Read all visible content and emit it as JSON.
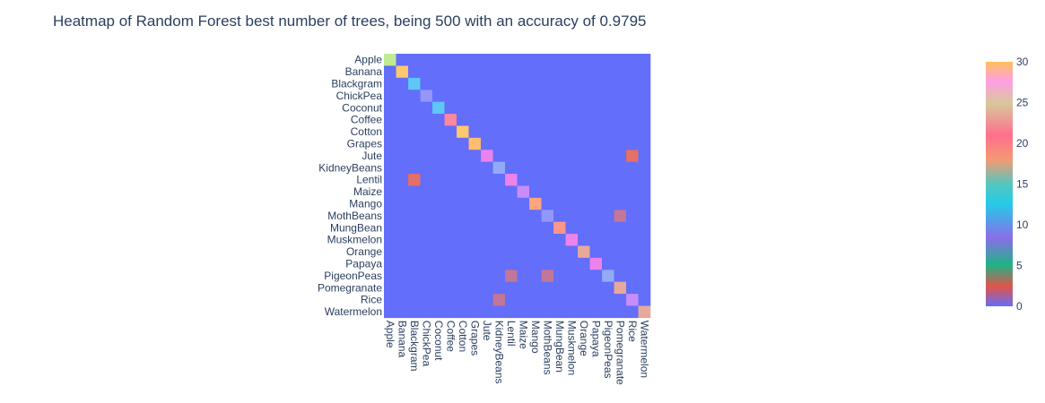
{
  "chart_data": {
    "type": "heatmap",
    "title": "Heatmap of Random Forest best number of trees, being 500 with an accuracy of 0.9795",
    "xlabel": "",
    "ylabel": "",
    "x_categories": [
      "Apple",
      "Banana",
      "Blackgram",
      "ChickPea",
      "Coconut",
      "Coffee",
      "Cotton",
      "Grapes",
      "Jute",
      "KidneyBeans",
      "Lentil",
      "Maize",
      "Mango",
      "MothBeans",
      "MungBean",
      "Muskmelon",
      "Orange",
      "Papaya",
      "PigeonPeas",
      "Pomegranate",
      "Rice",
      "Watermelon"
    ],
    "y_categories": [
      "Apple",
      "Banana",
      "Blackgram",
      "ChickPea",
      "Coconut",
      "Coffee",
      "Cotton",
      "Grapes",
      "Jute",
      "KidneyBeans",
      "Lentil",
      "Maize",
      "Mango",
      "MothBeans",
      "MungBean",
      "Muskmelon",
      "Orange",
      "Papaya",
      "PigeonPeas",
      "Pomegranate",
      "Rice",
      "Watermelon"
    ],
    "z": [
      [
        30,
        0,
        0,
        0,
        0,
        0,
        0,
        0,
        0,
        0,
        0,
        0,
        0,
        0,
        0,
        0,
        0,
        0,
        0,
        0,
        0,
        0
      ],
      [
        0,
        21,
        0,
        0,
        0,
        0,
        0,
        0,
        0,
        0,
        0,
        0,
        0,
        0,
        0,
        0,
        0,
        0,
        0,
        0,
        0,
        0
      ],
      [
        0,
        0,
        14,
        0,
        0,
        0,
        0,
        0,
        0,
        0,
        0,
        0,
        0,
        0,
        0,
        0,
        0,
        0,
        0,
        0,
        0,
        0
      ],
      [
        0,
        0,
        0,
        11,
        0,
        0,
        0,
        0,
        0,
        0,
        0,
        0,
        0,
        0,
        0,
        0,
        0,
        0,
        0,
        0,
        0,
        0
      ],
      [
        0,
        0,
        0,
        0,
        14,
        0,
        0,
        0,
        0,
        0,
        0,
        0,
        0,
        0,
        0,
        0,
        0,
        0,
        0,
        0,
        0,
        0
      ],
      [
        0,
        0,
        0,
        0,
        0,
        27,
        0,
        0,
        0,
        0,
        0,
        0,
        0,
        0,
        0,
        0,
        0,
        0,
        0,
        0,
        0,
        0
      ],
      [
        0,
        0,
        0,
        0,
        0,
        0,
        21,
        0,
        0,
        0,
        0,
        0,
        0,
        0,
        0,
        0,
        0,
        0,
        0,
        0,
        0,
        0
      ],
      [
        0,
        0,
        0,
        0,
        0,
        0,
        0,
        22,
        0,
        0,
        0,
        0,
        0,
        0,
        0,
        0,
        0,
        0,
        0,
        0,
        0,
        0
      ],
      [
        0,
        0,
        0,
        0,
        0,
        0,
        0,
        0,
        17,
        0,
        0,
        0,
        0,
        0,
        0,
        0,
        0,
        0,
        0,
        0,
        3,
        0
      ],
      [
        0,
        0,
        0,
        0,
        0,
        0,
        0,
        0,
        0,
        15,
        0,
        0,
        0,
        0,
        0,
        0,
        0,
        0,
        0,
        0,
        0,
        0
      ],
      [
        0,
        0,
        3,
        0,
        0,
        0,
        0,
        0,
        0,
        0,
        17,
        0,
        0,
        0,
        0,
        0,
        0,
        0,
        0,
        0,
        0,
        0
      ],
      [
        0,
        0,
        0,
        0,
        0,
        0,
        0,
        0,
        0,
        0,
        0,
        16,
        0,
        0,
        0,
        0,
        0,
        0,
        0,
        0,
        0,
        0
      ],
      [
        0,
        0,
        0,
        0,
        0,
        0,
        0,
        0,
        0,
        0,
        0,
        0,
        24,
        0,
        0,
        0,
        0,
        0,
        0,
        0,
        0,
        0
      ],
      [
        0,
        0,
        0,
        0,
        0,
        0,
        0,
        0,
        0,
        0,
        0,
        0,
        0,
        11,
        0,
        0,
        0,
        0,
        0,
        2,
        0,
        0
      ],
      [
        0,
        0,
        0,
        0,
        0,
        0,
        0,
        0,
        0,
        0,
        0,
        0,
        0,
        0,
        25,
        0,
        0,
        0,
        0,
        0,
        0,
        0
      ],
      [
        0,
        0,
        0,
        0,
        0,
        0,
        0,
        0,
        0,
        0,
        0,
        0,
        0,
        0,
        0,
        17,
        0,
        0,
        0,
        0,
        0,
        0
      ],
      [
        0,
        0,
        0,
        0,
        0,
        0,
        0,
        0,
        0,
        0,
        0,
        0,
        0,
        0,
        0,
        0,
        28,
        0,
        0,
        0,
        0,
        0
      ],
      [
        0,
        0,
        0,
        0,
        0,
        0,
        0,
        0,
        0,
        0,
        0,
        0,
        0,
        0,
        0,
        0,
        0,
        17,
        0,
        0,
        0,
        0
      ],
      [
        0,
        0,
        0,
        0,
        0,
        0,
        0,
        0,
        0,
        0,
        2,
        0,
        0,
        2,
        0,
        0,
        0,
        0,
        15,
        0,
        0,
        0
      ],
      [
        0,
        0,
        0,
        0,
        0,
        0,
        0,
        0,
        0,
        0,
        0,
        0,
        0,
        0,
        0,
        0,
        0,
        0,
        0,
        28,
        0,
        0
      ],
      [
        0,
        0,
        0,
        0,
        0,
        0,
        0,
        0,
        0,
        2,
        0,
        0,
        0,
        0,
        0,
        0,
        0,
        0,
        0,
        0,
        16,
        0
      ],
      [
        0,
        0,
        0,
        0,
        0,
        0,
        0,
        0,
        0,
        0,
        0,
        0,
        0,
        0,
        0,
        0,
        0,
        0,
        0,
        0,
        0,
        28
      ]
    ],
    "zrange": [
      0,
      30
    ],
    "colorscale": [
      [
        0.0,
        "#636efa"
      ],
      [
        0.1111,
        "#EF553B"
      ],
      [
        0.2222,
        "#00cc96"
      ],
      [
        0.3333,
        "#ab63fa"
      ],
      [
        0.4444,
        "#19d3f3"
      ],
      [
        0.5556,
        "#e763fa"
      ],
      [
        0.6667,
        "#FECB52"
      ],
      [
        0.7778,
        "#FFA15A"
      ],
      [
        0.8889,
        "#FF6692"
      ],
      [
        1.0,
        "#B6E880"
      ]
    ],
    "colorbar_ticks": [
      0,
      5,
      10,
      15,
      20,
      25,
      30
    ],
    "colorbar_stops": [
      [
        0.0,
        "#636efa"
      ],
      [
        0.08,
        "#e1544a"
      ],
      [
        0.17,
        "#1fb386"
      ],
      [
        0.28,
        "#8a6ee8"
      ],
      [
        0.42,
        "#24cbe8"
      ],
      [
        0.5,
        "#55c6bf"
      ],
      [
        0.6,
        "#f39a72"
      ],
      [
        0.7,
        "#ff6f8e"
      ],
      [
        0.83,
        "#d8c89a"
      ],
      [
        0.92,
        "#ff9fe6"
      ],
      [
        1.0,
        "#fdc05c"
      ]
    ],
    "cell_opacity": 0.85
  }
}
